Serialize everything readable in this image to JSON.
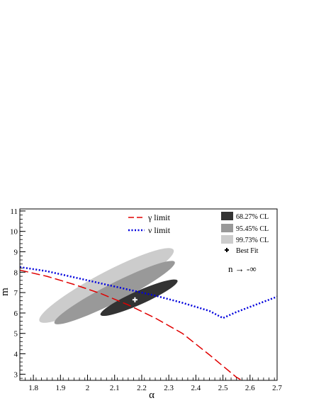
{
  "chart_data": {
    "type": "contour",
    "xlabel": "α",
    "ylabel": "m",
    "xlim": [
      1.75,
      2.7
    ],
    "ylim": [
      2.7,
      11.1
    ],
    "x_ticks": [
      1.8,
      1.9,
      2.0,
      2.1,
      2.2,
      2.3,
      2.4,
      2.5,
      2.6,
      2.7
    ],
    "x_tick_labels": [
      "1.8",
      "1.9",
      "2",
      "2.1",
      "2.2",
      "2.3",
      "2.4",
      "2.5",
      "2.6",
      "2.7"
    ],
    "y_ticks": [
      3,
      4,
      5,
      6,
      7,
      8,
      9,
      10,
      11
    ],
    "y_tick_labels": [
      "3",
      "4",
      "5",
      "6",
      "7",
      "8",
      "9",
      "10",
      "11"
    ],
    "grid": false,
    "regions": [
      {
        "label": "99.73% CL",
        "color": "#cccccc",
        "center": [
          2.07,
          7.35
        ],
        "rx": 0.63,
        "ry": 0.3,
        "angle_deg": -79
      },
      {
        "label": "95.45% CL",
        "color": "#999999",
        "center": [
          2.1,
          7.0
        ],
        "rx": 0.56,
        "ry": 0.22,
        "angle_deg": -78
      },
      {
        "label": "68.27% CL",
        "color": "#333333",
        "center": [
          2.19,
          6.75
        ],
        "rx": 0.35,
        "ry": 0.16,
        "angle_deg": -75
      }
    ],
    "best_fit": {
      "label": "Best Fit",
      "x": 2.175,
      "y": 6.65
    },
    "lines": [
      {
        "name": "γ limit",
        "color": "#e00000",
        "style": "dashed",
        "x": [
          1.75,
          1.85,
          1.95,
          2.05,
          2.15,
          2.25,
          2.35,
          2.45,
          2.55,
          2.57
        ],
        "y": [
          8.1,
          7.8,
          7.4,
          6.95,
          6.4,
          5.75,
          5.0,
          3.95,
          2.85,
          2.7
        ]
      },
      {
        "name": "ν limit",
        "color": "#0000dd",
        "style": "dotted",
        "x": [
          1.75,
          1.85,
          1.95,
          2.05,
          2.15,
          2.25,
          2.35,
          2.45,
          2.5,
          2.55,
          2.6,
          2.65,
          2.7
        ],
        "y": [
          8.25,
          8.05,
          7.75,
          7.45,
          7.15,
          6.85,
          6.5,
          6.1,
          5.75,
          6.05,
          6.3,
          6.55,
          6.8
        ]
      }
    ],
    "legend_left": {
      "position": "top-center",
      "entries": [
        "γ limit",
        "ν limit"
      ]
    },
    "legend_right": {
      "position": "top-right",
      "entries": [
        "68.27% CL",
        "95.45% CL",
        "99.73% CL",
        "Best Fit"
      ]
    },
    "annotation": "n → -∞"
  }
}
